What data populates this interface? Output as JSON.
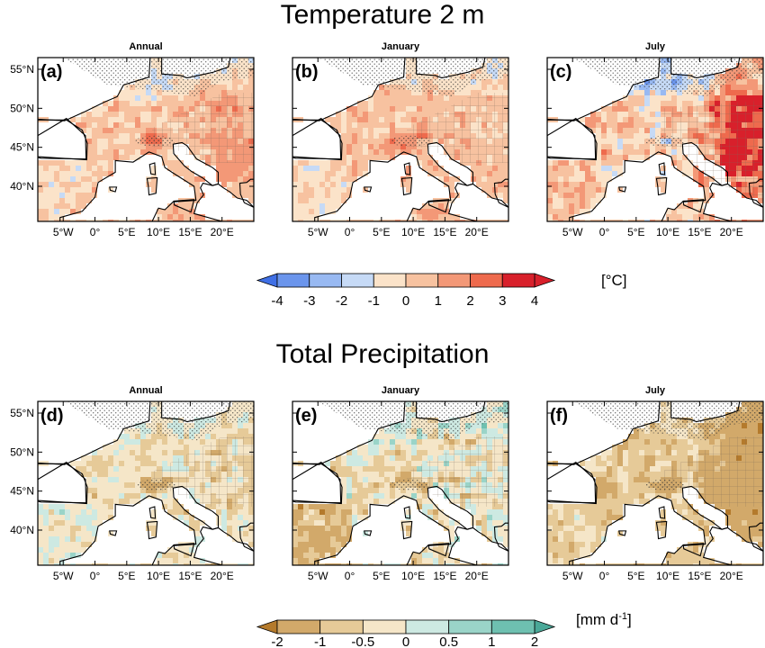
{
  "titles": {
    "temperature": "Temperature 2 m",
    "precipitation": "Total Precipitation"
  },
  "chart_data": [
    {
      "type": "heatmap",
      "title": "Temperature 2 m",
      "panels": [
        {
          "tag": "(a)",
          "title": "Annual",
          "palette": "temp",
          "field": {
            "base": 0.45,
            "north": -1.4,
            "east": 0.9,
            "alps": 1.6,
            "iberia": -0.4,
            "noise": 1.1
          }
        },
        {
          "tag": "(b)",
          "title": "January",
          "palette": "temp",
          "field": {
            "base": 0.55,
            "north": -0.9,
            "east": -0.2,
            "alps": 2.0,
            "iberia": -0.7,
            "noise": 1.0
          }
        },
        {
          "tag": "(c)",
          "title": "July",
          "palette": "temp",
          "field": {
            "base": 0.3,
            "north": -2.6,
            "east": 2.9,
            "alps": -1.2,
            "iberia": 0.3,
            "noise": 1.6
          }
        }
      ],
      "x_ticks": [
        "5°W",
        "0°",
        "5°E",
        "10°E",
        "15°E",
        "20°E"
      ],
      "x_tick_values": [
        -5,
        0,
        5,
        10,
        15,
        20
      ],
      "y_ticks": [
        "55°N",
        "50°N",
        "45°N",
        "40°N"
      ],
      "y_tick_values": [
        55,
        50,
        45,
        40
      ],
      "xlim": [
        -9,
        25
      ],
      "ylim": [
        35.5,
        56.5
      ],
      "colorbar": {
        "unit": "[°C]",
        "labels": [
          "-4",
          "-3",
          "-2",
          "-1",
          "0",
          "1",
          "2",
          "3",
          "4"
        ],
        "bounds": [
          -4,
          -3,
          -2,
          -1,
          0,
          1,
          2,
          3,
          4
        ],
        "colors": [
          "#3f6fe5",
          "#6b95ec",
          "#98b9f2",
          "#c6daf6",
          "#fbe3c9",
          "#f7c2a0",
          "#f39877",
          "#ee6a4d",
          "#d8202b"
        ]
      }
    },
    {
      "type": "heatmap",
      "title": "Total Precipitation",
      "panels": [
        {
          "tag": "(d)",
          "title": "Annual",
          "palette": "prec",
          "field": {
            "base": -0.35,
            "north": 0.3,
            "east": -0.1,
            "alps": -1.1,
            "iberia": 0.25,
            "noise": 0.6
          }
        },
        {
          "tag": "(e)",
          "title": "January",
          "palette": "prec",
          "field": {
            "base": -0.3,
            "north": 0.45,
            "east": 0.0,
            "alps": -1.4,
            "iberia": -0.8,
            "noise": 0.9
          }
        },
        {
          "tag": "(f)",
          "title": "July",
          "palette": "prec",
          "field": {
            "base": -0.75,
            "north": 0.15,
            "east": -0.9,
            "alps": -1.2,
            "iberia": 0.1,
            "noise": 0.55
          }
        }
      ],
      "x_ticks": [
        "5°W",
        "0°",
        "5°E",
        "10°E",
        "15°E",
        "20°E"
      ],
      "x_tick_values": [
        -5,
        0,
        5,
        10,
        15,
        20
      ],
      "y_ticks": [
        "55°N",
        "50°N",
        "45°N",
        "40°N"
      ],
      "y_tick_values": [
        55,
        50,
        45,
        40
      ],
      "xlim": [
        -9,
        25
      ],
      "ylim": [
        35.5,
        56.5
      ],
      "colorbar": {
        "unit": "[mm d",
        "unit_sup": "-1",
        "unit_end": "]",
        "labels": [
          "-2",
          "-1",
          "-0.5",
          "0",
          "0.5",
          "1",
          "2"
        ],
        "bounds": [
          -2,
          -1,
          -0.5,
          0,
          0.5,
          1,
          2
        ],
        "colors": [
          "#b47a2c",
          "#d2a96a",
          "#e6ca98",
          "#f5e6c8",
          "#cde9e2",
          "#9ad4c8",
          "#6ec0b0",
          "#4aa898"
        ]
      }
    }
  ]
}
